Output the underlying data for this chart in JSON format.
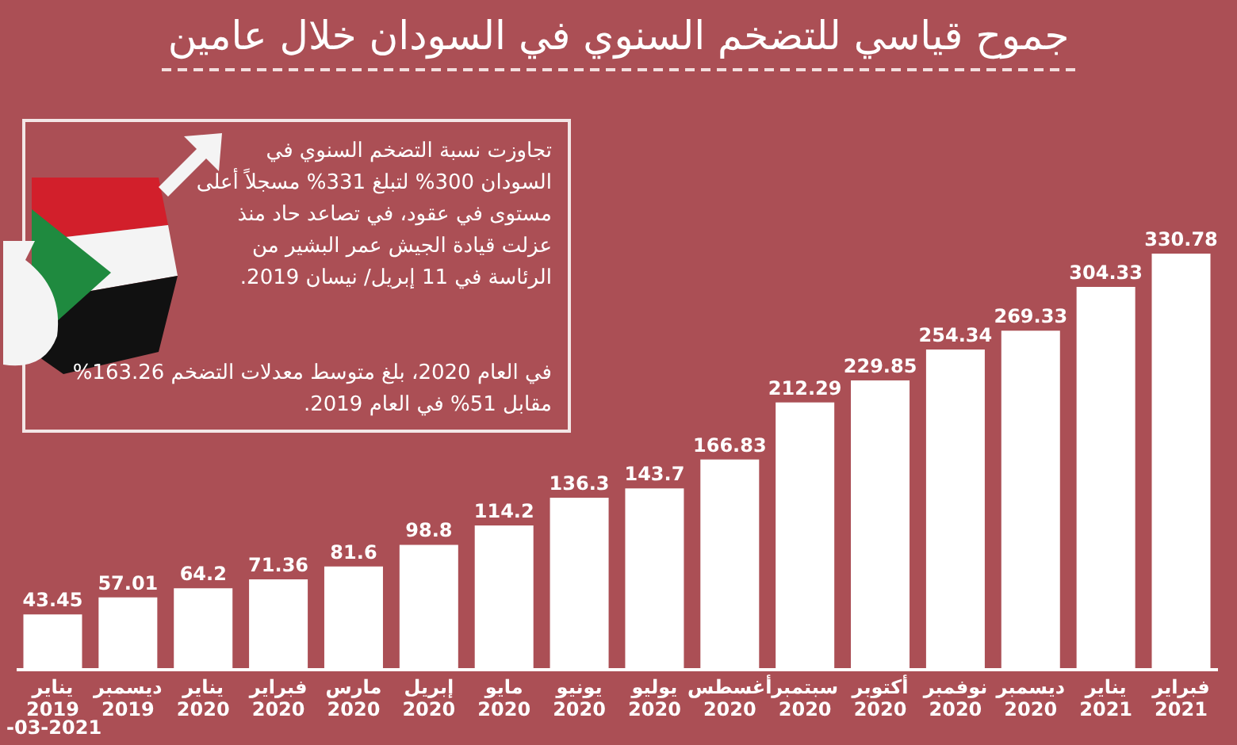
{
  "chart_data": {
    "type": "bar",
    "title": "جموح قياسي للتضخم السنوي في السودان خلال عامين",
    "categories": [
      "يناير\n2019",
      "ديسمبر\n2019",
      "يناير\n2020",
      "فبراير\n2020",
      "مارس\n2020",
      "إبريل\n2020",
      "مايو\n2020",
      "يونيو\n2020",
      "يوليو\n2020",
      "أغسطس\n2020",
      "سبتمبر\n2020",
      "أكتوبر\n2020",
      "نوفمبر\n2020",
      "ديسمبر\n2020",
      "يناير\n2021",
      "فبراير\n2021"
    ],
    "values": [
      43.45,
      57.01,
      64.2,
      71.36,
      81.6,
      98.8,
      114.2,
      136.3,
      143.7,
      166.83,
      212.29,
      229.85,
      254.34,
      269.33,
      304.33,
      330.78
    ],
    "color": "#ffffff",
    "data_labels": true,
    "tick_labels": "x",
    "annotations": [
      "تجاوزت نسبة التضخم السنوي في السودان 300% لتبلغ 331% مسجلاً أعلى مستوى في عقود، في تصاعد حاد منذ عزلت قيادة الجيش عمر البشير من الرئاسة في 11 إبريل/ نيسان 2019.",
      "في العام 2020، بلغ متوسط معدلات التضخم 163.26% مقابل 51% في العام 2019.",
      "-03-2021"
    ]
  }
}
